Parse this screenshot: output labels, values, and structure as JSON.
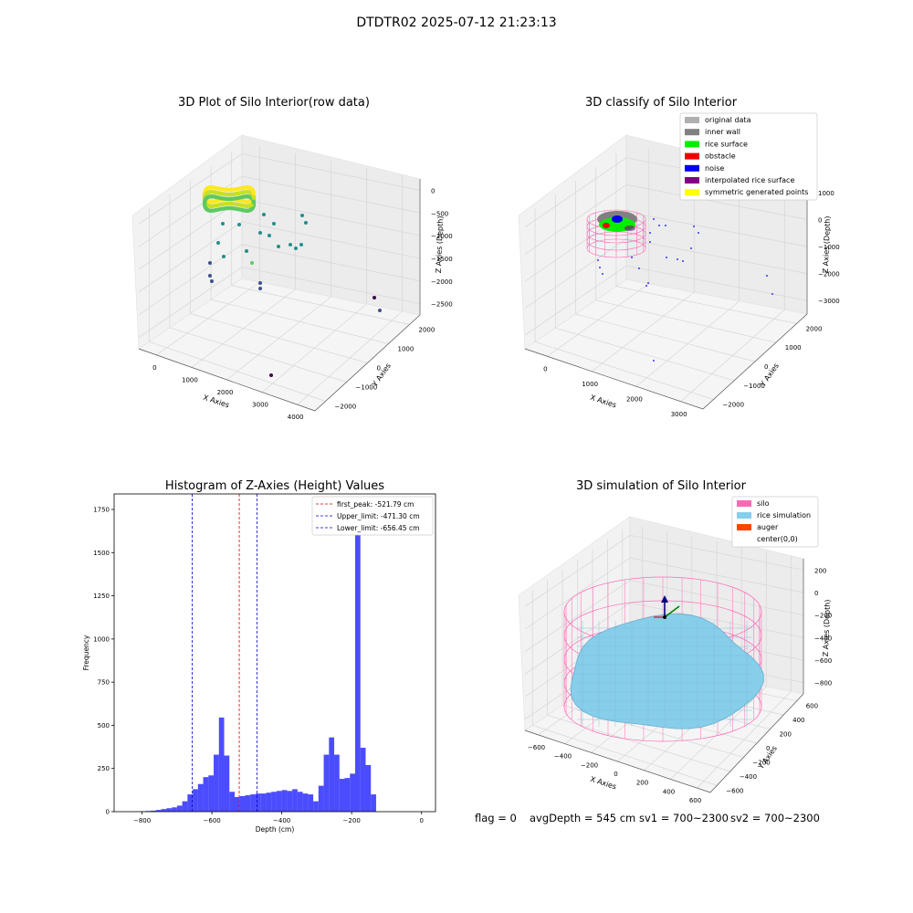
{
  "suptitle": "DTDTR02 2025-07-12 21:23:13",
  "status": {
    "flag": "flag = 0",
    "avg_depth": "avgDepth = 545 cm",
    "sv1": "sv1 = 700~2300",
    "sv2": "sv2 = 700~2300"
  },
  "chart_data": [
    {
      "type": "scatter",
      "id": "raw",
      "title": "3D Plot of Silo Interior(row data)",
      "xlabel": "X Axies",
      "ylabel": "Y Axies",
      "zlabel": "Z Axies (Depth)",
      "x_ticks": [
        "0",
        "1000",
        "2000",
        "3000",
        "4000"
      ],
      "y_ticks": [
        "2000",
        "1000",
        "0",
        "−1000",
        "−2000"
      ],
      "z_ticks": [
        "0",
        "−500",
        "−1000",
        "−1500",
        "−2000",
        "−2500"
      ],
      "colormap": [
        "#440154",
        "#3b528b",
        "#21908d",
        "#5dc963",
        "#fde725"
      ],
      "grid": true
    },
    {
      "type": "scatter",
      "id": "classify",
      "title": "3D classify of Silo Interior",
      "xlabel": "X Axies",
      "ylabel": "Y Axies",
      "zlabel": "Z Axies (Depth)",
      "x_ticks": [
        "0",
        "1000",
        "2000",
        "3000"
      ],
      "y_ticks": [
        "2000",
        "1000",
        "0",
        "−1000",
        "−2000"
      ],
      "z_ticks": [
        "1000",
        "0",
        "−1000",
        "−2000",
        "−3000"
      ],
      "legend": [
        {
          "label": "original data",
          "color": "#b0b0b0"
        },
        {
          "label": "inner wall",
          "color": "#808080"
        },
        {
          "label": "rice surface",
          "color": "#00ee00"
        },
        {
          "label": "obstacle",
          "color": "#ee0000"
        },
        {
          "label": "noise",
          "color": "#0000ee"
        },
        {
          "label": "interpolated rice surface",
          "color": "#800080"
        },
        {
          "label": "symmetric generated points",
          "color": "#ffff00"
        }
      ],
      "legend_loc": "upper right",
      "grid": true
    },
    {
      "type": "bar",
      "id": "hist",
      "title": "Histogram of Z-Axies (Height) Values",
      "xlabel": "Depth (cm)",
      "ylabel": "Frequency",
      "xlim": [
        -880,
        40
      ],
      "ylim": [
        0,
        1840
      ],
      "x_ticks": [
        -800,
        -600,
        -400,
        -200,
        0
      ],
      "x_tick_labels": [
        "−800",
        "−600",
        "−400",
        "−200",
        "0"
      ],
      "y_ticks": [
        0,
        250,
        500,
        750,
        1000,
        1250,
        1500,
        1750
      ],
      "bin_start": -880,
      "bin_width": 15,
      "counts": [
        0,
        0,
        0,
        0,
        1,
        2,
        4,
        6,
        10,
        15,
        20,
        25,
        35,
        60,
        100,
        130,
        160,
        200,
        210,
        330,
        545,
        325,
        115,
        85,
        90,
        95,
        100,
        105,
        105,
        110,
        115,
        120,
        125,
        120,
        130,
        115,
        105,
        100,
        60,
        150,
        330,
        430,
        330,
        190,
        195,
        220,
        1730,
        370,
        270,
        100
      ],
      "bar_color": "#0000ff",
      "bar_alpha": 0.7,
      "vlines": [
        {
          "label": "first_peak: -521.79 cm",
          "x": -521.79,
          "color": "#dd0000"
        },
        {
          "label": "Upper_limit: -471.30 cm",
          "x": -471.3,
          "color": "#0000cc"
        },
        {
          "label": "Lower_limit: -656.45 cm",
          "x": -656.45,
          "color": "#0000cc"
        }
      ],
      "legend_loc": "upper right"
    },
    {
      "type": "surface",
      "id": "sim",
      "title": "3D simulation of Silo Interior",
      "xlabel": "X Axies",
      "ylabel": "Y Axies",
      "zlabel": "Z Axies (Depth)",
      "x_ticks": [
        "−600",
        "−400",
        "−200",
        "0",
        "200",
        "400",
        "600"
      ],
      "y_ticks": [
        "600",
        "400",
        "200",
        "0",
        "−200",
        "−400",
        "−600"
      ],
      "z_ticks": [
        "200",
        "0",
        "−200",
        "−400",
        "−600",
        "−800"
      ],
      "legend": [
        {
          "label": "silo",
          "color": "#ff69b4"
        },
        {
          "label": "rice simulation",
          "color": "#87ceeb"
        },
        {
          "label": "auger",
          "color": "#ff4500"
        },
        {
          "label": "center(0,0)",
          "color": "none"
        }
      ],
      "legend_loc": "upper right"
    }
  ]
}
